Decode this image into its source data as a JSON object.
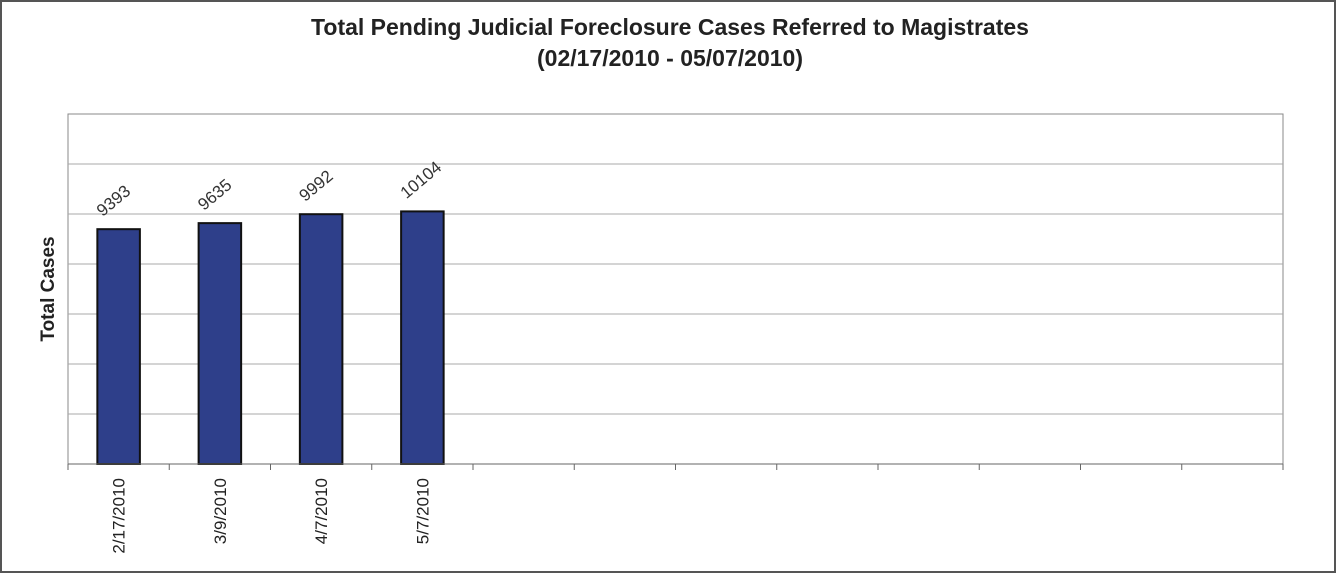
{
  "chart_data": {
    "type": "bar",
    "title": "Total Pending Judicial Foreclosure Cases Referred to Magistrates",
    "subtitle": "(02/17/2010 - 05/07/2010)",
    "ylabel": "Total Cases",
    "xlabel": "",
    "categories": [
      "2/17/2010",
      "3/9/2010",
      "4/7/2010",
      "5/7/2010"
    ],
    "values": [
      9393,
      9635,
      9992,
      10104
    ],
    "empty_category_slots": 8,
    "ylim": [
      0,
      14000
    ],
    "y_gridline_step": 2000,
    "y_tick_labels_visible": false,
    "grid": true,
    "legend": "none",
    "data_labels": true,
    "bar_color": "#2e3f8a",
    "bar_border_color": "#111111",
    "gridline_color": "#a8a8a8"
  }
}
